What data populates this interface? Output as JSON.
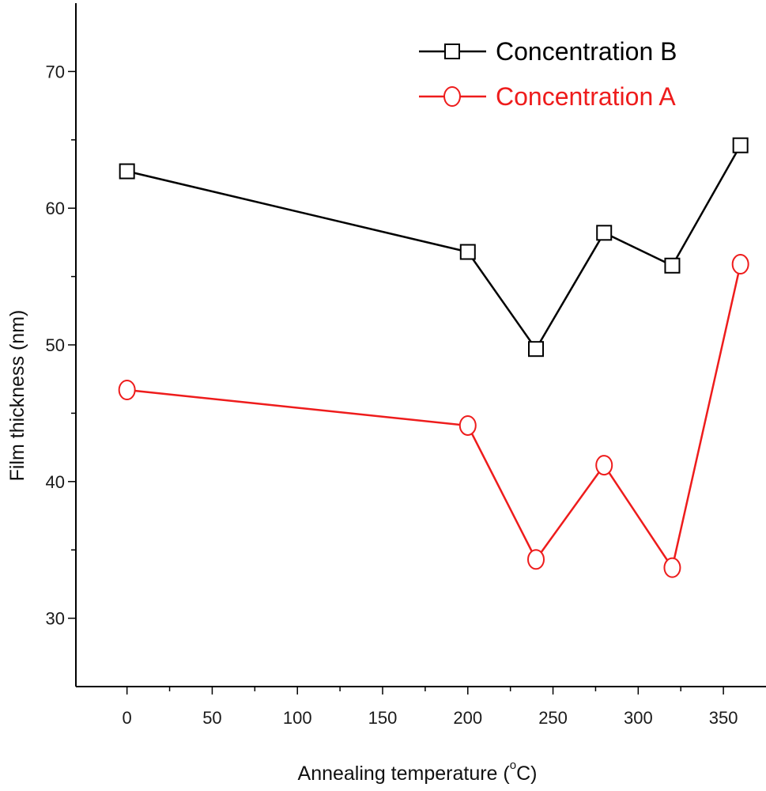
{
  "chart_data": {
    "type": "line",
    "title": "",
    "xlabel": "Annealing temperature (",
    "xlabel_degree": "o",
    "xlabel_unit": "C)",
    "ylabel": "Film thickness (nm)",
    "xlim": [
      -30,
      375
    ],
    "ylim": [
      25,
      75
    ],
    "x_ticks": [
      0,
      50,
      100,
      150,
      200,
      250,
      300,
      350
    ],
    "x_tick_labels": [
      "0",
      "50",
      "100",
      "150",
      "200",
      "250",
      "300",
      "350"
    ],
    "y_ticks": [
      30,
      40,
      50,
      60,
      70
    ],
    "y_tick_labels": [
      "30",
      "40",
      "50",
      "60",
      "70"
    ],
    "grid": false,
    "legend_position": "top-right",
    "series": [
      {
        "name": "Concentration B",
        "color": "#000000",
        "marker": "square",
        "x": [
          0,
          200,
          240,
          280,
          320,
          360
        ],
        "values": [
          62.7,
          56.8,
          49.7,
          58.2,
          55.8,
          64.6
        ]
      },
      {
        "name": "Concentration A",
        "color": "#ee1c1c",
        "marker": "circle",
        "x": [
          0,
          200,
          240,
          280,
          320,
          360
        ],
        "values": [
          46.7,
          44.1,
          34.3,
          41.2,
          33.7,
          55.9
        ]
      }
    ]
  }
}
